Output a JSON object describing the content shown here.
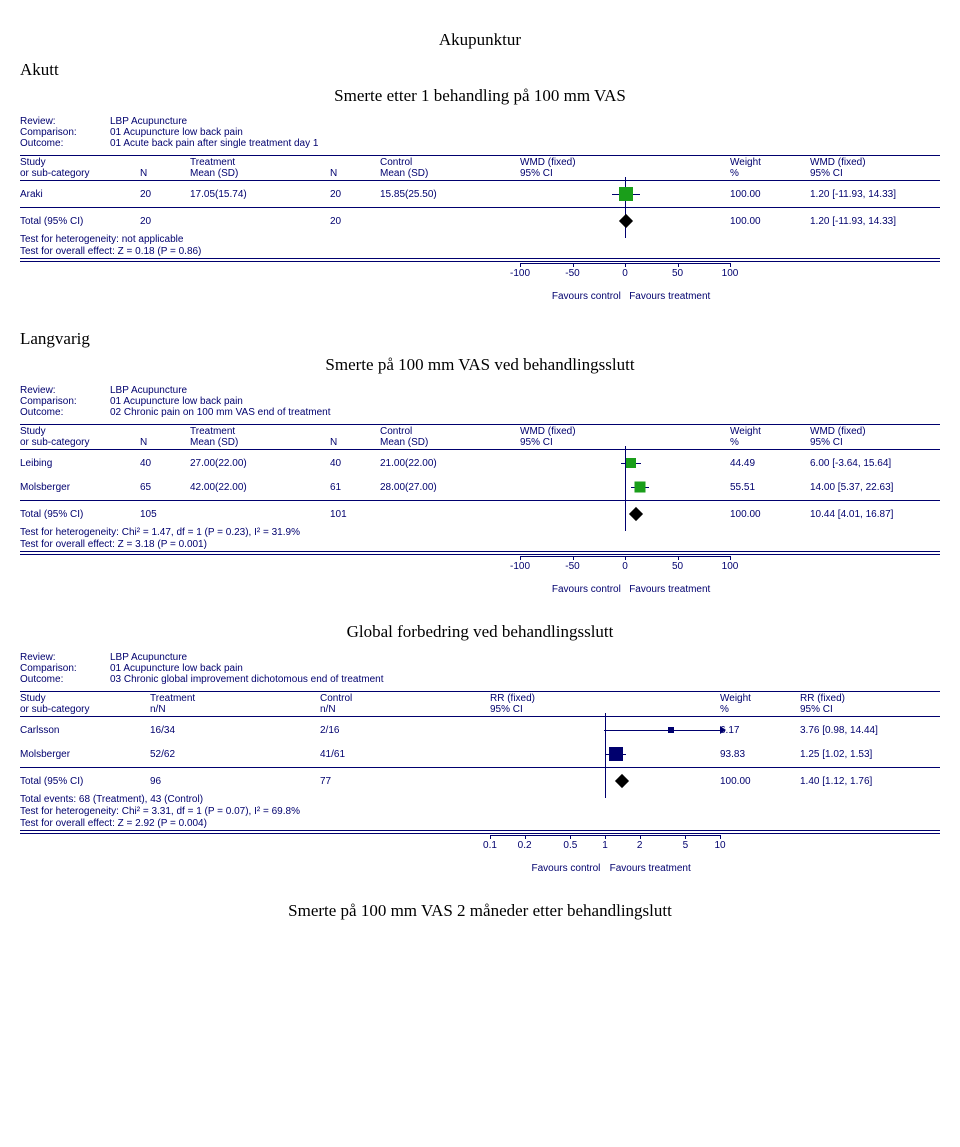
{
  "page_title": "Akupunktur",
  "side_heading": "Akutt",
  "bottom_caption": "Smerte på 100 mm VAS 2 måneder etter behandlingslutt",
  "plots": [
    {
      "title": "Smerte etter 1 behandling på 100 mm VAS",
      "side_heading_before": true,
      "meta": {
        "review": "LBP Acupuncture",
        "comparison": "01 Acupuncture low back pain",
        "outcome": "01 Acute back pain after single treatment day 1"
      },
      "scale": {
        "type": "linear",
        "min": -100,
        "max": 100,
        "zero": 0,
        "ticks": [
          -100,
          -50,
          0,
          50,
          100
        ]
      },
      "grid": "120px 50px 140px 50px 140px 210px 80px 130px",
      "axis_grid": "500px 210px 210px",
      "effect_name": "WMD (fixed)",
      "headers": [
        "Study\nor sub-category",
        "\nN",
        "Treatment\nMean (SD)",
        "\nN",
        "Control\nMean (SD)",
        "WMD (fixed)\n95% CI",
        "Weight\n%",
        "WMD (fixed)\n95% CI"
      ],
      "studies": [
        {
          "name": "Araki",
          "n_t": "20",
          "tx": "17.05(15.74)",
          "n_c": "20",
          "ctrl": "15.85(25.50)",
          "weight": "100.00",
          "ci_text": "1.20 [-11.93, 14.33]",
          "est": 1.2,
          "lo": -11.93,
          "hi": 14.33,
          "color": "#1a9e1a",
          "size": 14
        }
      ],
      "total": {
        "label": "Total (95% CI)",
        "n_t": "20",
        "n_c": "20",
        "weight": "100.00",
        "ci_text": "1.20 [-11.93, 14.33]",
        "est": 1.2,
        "lo": -11.93,
        "hi": 14.33
      },
      "footers": [
        "Test for heterogeneity: not applicable",
        "Test for overall effect: Z = 0.18 (P = 0.86)"
      ],
      "favours": {
        "left": "Favours control",
        "right": "Favours treatment"
      }
    },
    {
      "title": "Smerte på 100 mm VAS ved behandlingsslutt",
      "heading_before": "Langvarig",
      "meta": {
        "review": "LBP Acupuncture",
        "comparison": "01 Acupuncture low back pain",
        "outcome": "02 Chronic pain on 100 mm VAS end of treatment"
      },
      "scale": {
        "type": "linear",
        "min": -100,
        "max": 100,
        "zero": 0,
        "ticks": [
          -100,
          -50,
          0,
          50,
          100
        ]
      },
      "grid": "120px 50px 140px 50px 140px 210px 80px 130px",
      "axis_grid": "500px 210px 210px",
      "effect_name": "WMD (fixed)",
      "headers": [
        "Study\nor sub-category",
        "\nN",
        "Treatment\nMean (SD)",
        "\nN",
        "Control\nMean (SD)",
        "WMD (fixed)\n95% CI",
        "Weight\n%",
        "WMD (fixed)\n95% CI"
      ],
      "studies": [
        {
          "name": "Leibing",
          "n_t": "40",
          "tx": "27.00(22.00)",
          "n_c": "40",
          "ctrl": "21.00(22.00)",
          "weight": "44.49",
          "ci_text": "6.00 [-3.64, 15.64]",
          "est": 6.0,
          "lo": -3.64,
          "hi": 15.64,
          "color": "#1a9e1a",
          "size": 10
        },
        {
          "name": "Molsberger",
          "n_t": "65",
          "tx": "42.00(22.00)",
          "n_c": "61",
          "ctrl": "28.00(27.00)",
          "weight": "55.51",
          "ci_text": "14.00 [5.37, 22.63]",
          "est": 14.0,
          "lo": 5.37,
          "hi": 22.63,
          "color": "#1a9e1a",
          "size": 11
        }
      ],
      "total": {
        "label": "Total (95% CI)",
        "n_t": "105",
        "n_c": "101",
        "weight": "100.00",
        "ci_text": "10.44 [4.01, 16.87]",
        "est": 10.44,
        "lo": 4.01,
        "hi": 16.87
      },
      "footers": [
        "Test for heterogeneity: Chi² = 1.47, df = 1 (P = 0.23), I² = 31.9%",
        "Test for overall effect: Z = 3.18 (P = 0.001)"
      ],
      "favours": {
        "left": "Favours control",
        "right": "Favours treatment"
      }
    },
    {
      "title": "Global forbedring ved behandlingsslutt",
      "meta": {
        "review": "LBP Acupuncture",
        "comparison": "01 Acupuncture low back pain",
        "outcome": "03 Chronic global improvement dichotomous end of treatment"
      },
      "scale": {
        "type": "log",
        "min": 0.1,
        "max": 10,
        "zero": 1,
        "ticks": [
          0.1,
          0.2,
          0.5,
          1,
          2,
          5,
          10
        ]
      },
      "grid": "130px 170px 170px 230px 80px 140px",
      "axis_grid": "470px 230px 220px",
      "effect_name": "RR (fixed)",
      "headers": [
        "Study\nor sub-category",
        "Treatment\nn/N",
        "Control\nn/N",
        "RR (fixed)\n95% CI",
        "Weight\n%",
        "RR (fixed)\n95% CI"
      ],
      "studies": [
        {
          "name": "Carlsson",
          "tx": "16/34",
          "ctrl": "2/16",
          "weight": "6.17",
          "ci_text": "3.76 [0.98, 14.44]",
          "est": 3.76,
          "lo": 0.98,
          "hi": 14.44,
          "color": "#00006e",
          "size": 6,
          "arrow": "right"
        },
        {
          "name": "Molsberger",
          "tx": "52/62",
          "ctrl": "41/61",
          "weight": "93.83",
          "ci_text": "1.25 [1.02, 1.53]",
          "est": 1.25,
          "lo": 1.02,
          "hi": 1.53,
          "color": "#00006e",
          "size": 14
        }
      ],
      "total": {
        "label": "Total (95% CI)",
        "n_t": "96",
        "n_c": "77",
        "weight": "100.00",
        "ci_text": "1.40 [1.12, 1.76]",
        "est": 1.4,
        "lo": 1.12,
        "hi": 1.76
      },
      "footers": [
        "Total events: 68 (Treatment), 43 (Control)",
        "Test for heterogeneity: Chi² = 3.31, df = 1 (P = 0.07), I² = 69.8%",
        "Test for overall effect: Z = 2.92 (P = 0.004)"
      ],
      "favours": {
        "left": "Favours control",
        "right": "Favours treatment"
      }
    }
  ]
}
